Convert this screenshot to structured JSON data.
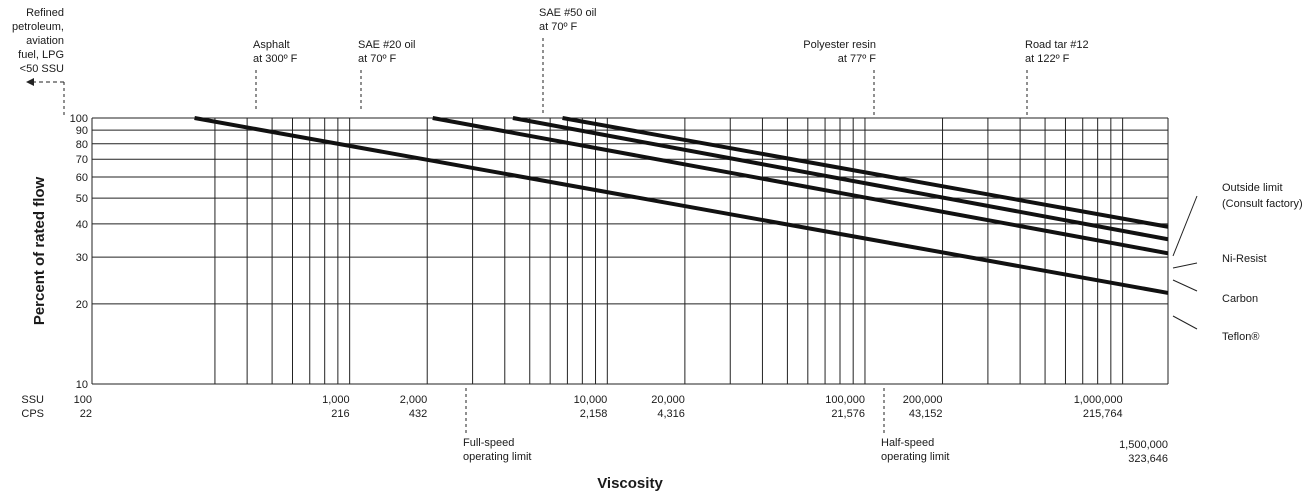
{
  "chart_data": {
    "type": "line",
    "xlabel": "Viscosity",
    "ylabel": "Percent of rated flow",
    "x_scale": "log",
    "y_scale": "log",
    "xlim": [
      100,
      1500000
    ],
    "ylim": [
      10,
      100
    ],
    "grid": true,
    "y_ticks": [
      "10",
      "20",
      "30",
      "40",
      "50",
      "60",
      "70",
      "80",
      "90",
      "100"
    ],
    "x_row_labels": [
      "SSU",
      "CPS"
    ],
    "x_ticks": [
      {
        "ssu_value": 100,
        "ssu": "100",
        "cps": "22"
      },
      {
        "ssu_value": 1000,
        "ssu": "1,000",
        "cps": "216"
      },
      {
        "ssu_value": 2000,
        "ssu": "2,000",
        "cps": "432"
      },
      {
        "ssu_value": 10000,
        "ssu": "10,000",
        "cps": "2,158"
      },
      {
        "ssu_value": 20000,
        "ssu": "20,000",
        "cps": "4,316"
      },
      {
        "ssu_value": 100000,
        "ssu": "100,000",
        "cps": "21,576"
      },
      {
        "ssu_value": 200000,
        "ssu": "200,000",
        "cps": "43,152"
      },
      {
        "ssu_value": 1000000,
        "ssu": "1,000,000",
        "cps": "215,764"
      },
      {
        "ssu_value": 1500000,
        "ssu": "1,500,000",
        "cps": "323,646"
      }
    ],
    "series": [
      {
        "name": "Outside limit (Consult factory)",
        "x": [
          6700,
          1500000
        ],
        "y": [
          100,
          39
        ]
      },
      {
        "name": "Ni-Resist",
        "x": [
          4300,
          1500000
        ],
        "y": [
          100,
          35
        ]
      },
      {
        "name": "Carbon",
        "x": [
          2100,
          1500000
        ],
        "y": [
          100,
          31
        ]
      },
      {
        "name": "Teflon®",
        "x": [
          250,
          1500000
        ],
        "y": [
          100,
          22
        ]
      }
    ],
    "annotations": [
      {
        "text": [
          "Refined",
          "petroleum,",
          "aviation",
          "fuel, LPG",
          "<50 SSU"
        ],
        "ssu": 100
      },
      {
        "text": [
          "Asphalt",
          "at 300º F"
        ],
        "ssu": 470
      },
      {
        "text": [
          "SAE #20 oil",
          "at 70º F"
        ],
        "ssu": 1000
      },
      {
        "text": [
          "SAE #50 oil",
          "at 70º F"
        ],
        "ssu": 6200
      },
      {
        "text": [
          "Polyester resin",
          "at 77º F"
        ],
        "ssu": 110000
      },
      {
        "text": [
          "Road tar #12",
          "at 122º F"
        ],
        "ssu": 620000
      },
      {
        "text": [
          "Full-speed",
          "operating limit"
        ],
        "ssu": 3700
      },
      {
        "text": [
          "Half-speed",
          "operating limit"
        ],
        "ssu": 120000
      }
    ]
  }
}
